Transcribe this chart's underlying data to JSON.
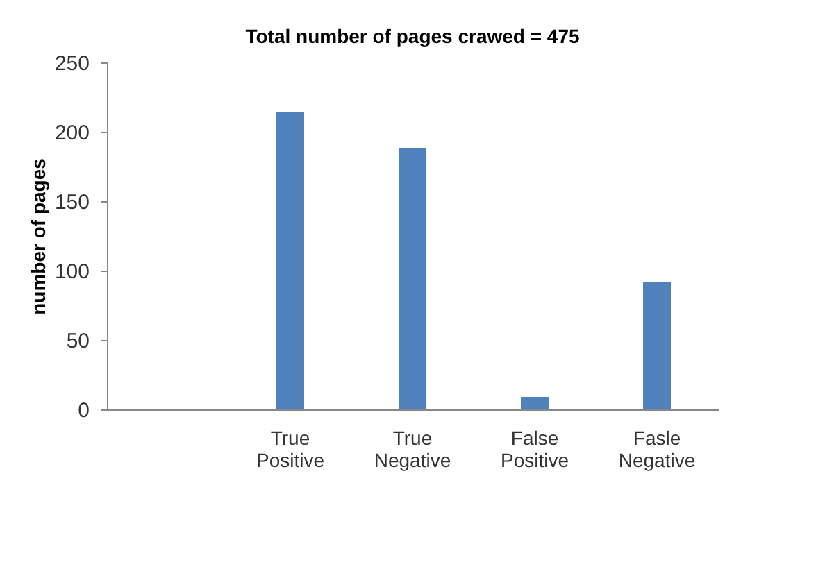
{
  "chart_data": {
    "type": "bar",
    "title": "Total number of pages crawed = 475",
    "ylabel": "number of pages",
    "categories": [
      null,
      "True Positive",
      "True Negative",
      "False Positive",
      "Fasle Negative"
    ],
    "values": [
      null,
      214,
      188,
      9,
      92
    ],
    "color": "#4f81bd",
    "ylim": [
      0,
      250
    ],
    "yticks": [
      0,
      50,
      100,
      150,
      200,
      250
    ],
    "grid": false
  }
}
